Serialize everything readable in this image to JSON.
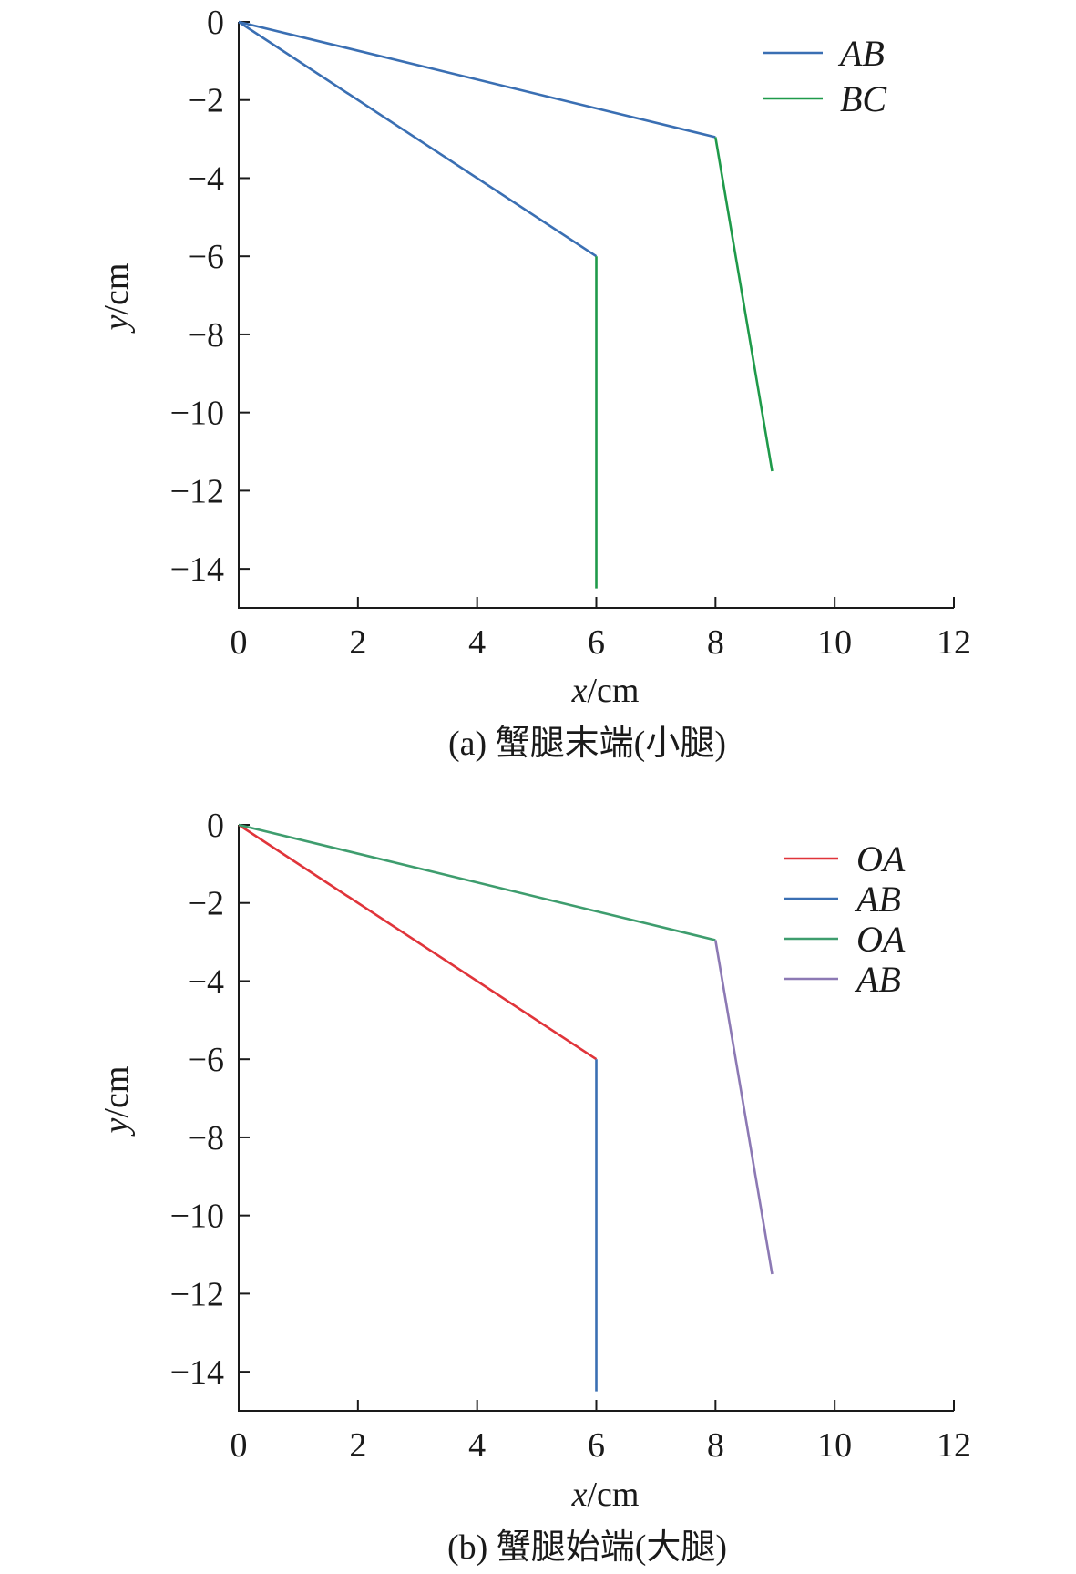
{
  "chart_data": [
    {
      "type": "line",
      "caption": "(a) 蟹腿末端(小腿)",
      "xlabel": {
        "var": "x",
        "unit": "/cm"
      },
      "ylabel": {
        "var": "y",
        "unit": "/cm"
      },
      "xlim": [
        0,
        12
      ],
      "ylim": [
        -15,
        0
      ],
      "xticks": [
        0,
        2,
        4,
        6,
        8,
        10,
        12
      ],
      "yticks": [
        0,
        -2,
        -4,
        -6,
        -8,
        -10,
        -12,
        -14
      ],
      "legend": "top-right",
      "series": [
        {
          "name": "AB",
          "color": "#3a6fb3",
          "segments": [
            [
              [
                0,
                0
              ],
              [
                6,
                -6
              ]
            ],
            [
              [
                0,
                0
              ],
              [
                8,
                -2.95
              ]
            ]
          ]
        },
        {
          "name": "BC",
          "color": "#1f9a4a",
          "segments": [
            [
              [
                6,
                -6
              ],
              [
                6,
                -14.5
              ]
            ],
            [
              [
                8,
                -2.95
              ],
              [
                8.95,
                -11.5
              ]
            ]
          ]
        }
      ]
    },
    {
      "type": "line",
      "caption": "(b) 蟹腿始端(大腿)",
      "xlabel": {
        "var": "x",
        "unit": "/cm"
      },
      "ylabel": {
        "var": "y",
        "unit": "/cm"
      },
      "xlim": [
        0,
        12
      ],
      "ylim": [
        -15,
        0
      ],
      "xticks": [
        0,
        2,
        4,
        6,
        8,
        10,
        12
      ],
      "yticks": [
        0,
        -2,
        -4,
        -6,
        -8,
        -10,
        -12,
        -14
      ],
      "legend": "top-right",
      "series": [
        {
          "name": "OA",
          "color": "#e0343a",
          "segments": [
            [
              [
                0,
                0
              ],
              [
                6,
                -6
              ]
            ]
          ]
        },
        {
          "name": "AB",
          "color": "#3a6fb3",
          "segments": [
            [
              [
                6,
                -6
              ],
              [
                6,
                -14.5
              ]
            ]
          ]
        },
        {
          "name": "OA",
          "color": "#3e9d6e",
          "segments": [
            [
              [
                0,
                0
              ],
              [
                8,
                -2.95
              ]
            ]
          ]
        },
        {
          "name": "AB",
          "color": "#8c79b4",
          "segments": [
            [
              [
                8,
                -2.95
              ],
              [
                8.95,
                -11.5
              ]
            ]
          ]
        }
      ]
    }
  ]
}
